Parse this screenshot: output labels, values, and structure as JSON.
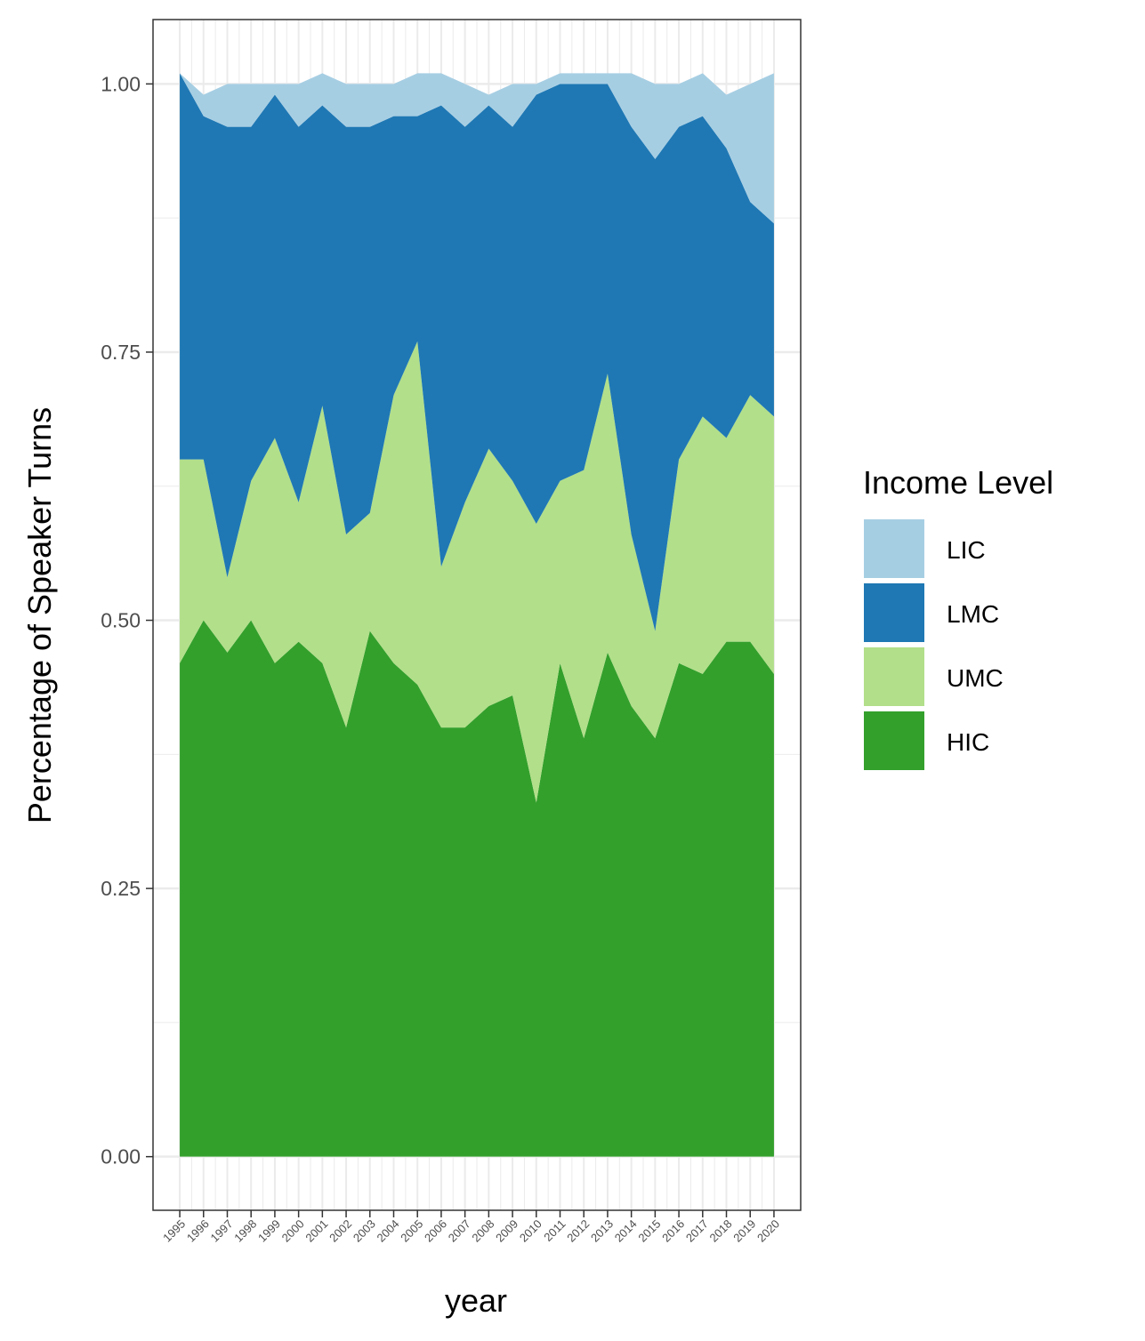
{
  "chart_data": {
    "type": "area",
    "stacked": true,
    "xlabel": "year",
    "ylabel": "Percentage of Speaker Turns",
    "ylim": [
      -0.05,
      1.06
    ],
    "yticks": [
      "0.00",
      "0.25",
      "0.50",
      "0.75",
      "1.00"
    ],
    "x": [
      1995,
      1996,
      1997,
      1998,
      1999,
      2000,
      2001,
      2002,
      2003,
      2004,
      2005,
      2006,
      2007,
      2008,
      2009,
      2010,
      2011,
      2012,
      2013,
      2014,
      2015,
      2016,
      2017,
      2018,
      2019,
      2020
    ],
    "legend_title": "Income Level",
    "legend_position": "right",
    "grid": true,
    "series": [
      {
        "name": "LIC",
        "color": "#a6cee3",
        "values": [
          0.0,
          0.02,
          0.04,
          0.04,
          0.01,
          0.04,
          0.03,
          0.04,
          0.04,
          0.03,
          0.04,
          0.03,
          0.04,
          0.01,
          0.04,
          0.01,
          0.01,
          0.01,
          0.01,
          0.05,
          0.07,
          0.04,
          0.04,
          0.05,
          0.11,
          0.14
        ]
      },
      {
        "name": "LMC",
        "color": "#1f78b4",
        "values": [
          0.36,
          0.32,
          0.42,
          0.33,
          0.32,
          0.35,
          0.28,
          0.38,
          0.36,
          0.26,
          0.21,
          0.43,
          0.35,
          0.32,
          0.33,
          0.4,
          0.37,
          0.36,
          0.27,
          0.38,
          0.44,
          0.31,
          0.28,
          0.27,
          0.18,
          0.18
        ]
      },
      {
        "name": "UMC",
        "color": "#b2df8a",
        "values": [
          0.19,
          0.15,
          0.07,
          0.13,
          0.21,
          0.13,
          0.24,
          0.18,
          0.11,
          0.25,
          0.32,
          0.15,
          0.21,
          0.24,
          0.2,
          0.26,
          0.17,
          0.25,
          0.26,
          0.16,
          0.1,
          0.19,
          0.24,
          0.19,
          0.23,
          0.24
        ]
      },
      {
        "name": "HIC",
        "color": "#33a02c",
        "values": [
          0.46,
          0.5,
          0.47,
          0.5,
          0.46,
          0.48,
          0.46,
          0.4,
          0.49,
          0.46,
          0.44,
          0.4,
          0.4,
          0.42,
          0.43,
          0.33,
          0.46,
          0.39,
          0.47,
          0.42,
          0.39,
          0.46,
          0.45,
          0.48,
          0.48,
          0.45
        ]
      }
    ]
  }
}
